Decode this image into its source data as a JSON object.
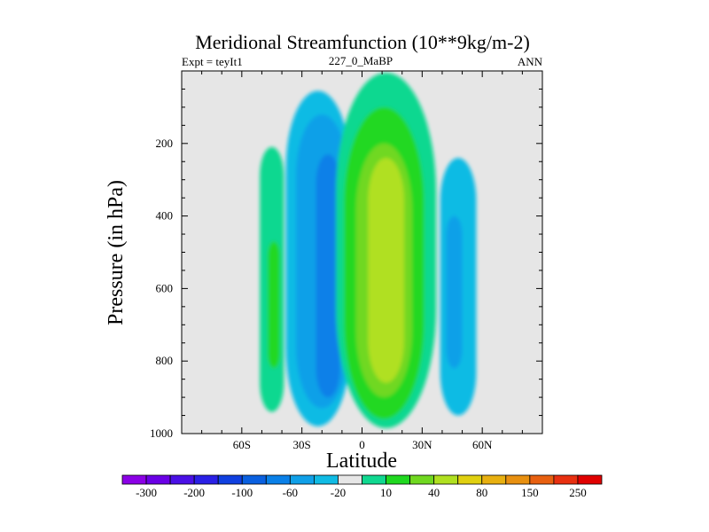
{
  "chart_data": {
    "type": "contour",
    "title": "Meridional Streamfunction (10**9kg/m-2)",
    "subtitle_left": "Expt = teyIt1",
    "subtitle_center": "227_0_MaBP",
    "subtitle_right": "ANN",
    "xlabel": "Latitude",
    "ylabel": "Pressure (in hPa)",
    "xlim": [
      -90,
      90
    ],
    "ylim": [
      0,
      1000
    ],
    "x_ticks": [
      {
        "value": -60,
        "label": "60S"
      },
      {
        "value": -30,
        "label": "30S"
      },
      {
        "value": 0,
        "label": "0"
      },
      {
        "value": 30,
        "label": "30N"
      },
      {
        "value": 60,
        "label": "60N"
      }
    ],
    "y_ticks": [
      {
        "value": 200,
        "label": "200"
      },
      {
        "value": 400,
        "label": "400"
      },
      {
        "value": 600,
        "label": "600"
      },
      {
        "value": 800,
        "label": "800"
      },
      {
        "value": 1000,
        "label": "1000"
      }
    ],
    "colorbar": {
      "colors": [
        "#8b00e6",
        "#6a00e6",
        "#4a10e6",
        "#2a20e6",
        "#1040e0",
        "#0a60e0",
        "#0a80e8",
        "#10a0e8",
        "#10bbe4",
        "#e6e6e6",
        "#10d890",
        "#20d820",
        "#70d820",
        "#b0e020",
        "#e0d010",
        "#e8b010",
        "#e89010",
        "#e86010",
        "#e83010",
        "#e00000"
      ],
      "labels": [
        {
          "after_box": 0,
          "text": "-300"
        },
        {
          "after_box": 2,
          "text": "-200"
        },
        {
          "after_box": 4,
          "text": "-100"
        },
        {
          "after_box": 6,
          "text": "-60"
        },
        {
          "after_box": 8,
          "text": "-20"
        },
        {
          "after_box": 10,
          "text": "10"
        },
        {
          "after_box": 12,
          "text": "40"
        },
        {
          "after_box": 14,
          "text": "80"
        },
        {
          "after_box": 16,
          "text": "150"
        },
        {
          "after_box": 18,
          "text": "250"
        }
      ]
    },
    "cells": [
      {
        "lat": -45,
        "pmin": 210,
        "pmax": 940,
        "half_width": 6,
        "color_index": 10,
        "name": "cell-sh-polar-outer"
      },
      {
        "lat": -44,
        "pmin": 470,
        "pmax": 820,
        "half_width": 3,
        "color_index": 11,
        "name": "cell-sh-polar-inner"
      },
      {
        "lat": -22,
        "pmin": 55,
        "pmax": 980,
        "half_width": 16,
        "color_index": 8,
        "name": "cell-sh-hadley-outer"
      },
      {
        "lat": -20,
        "pmin": 120,
        "pmax": 930,
        "half_width": 13,
        "color_index": 7,
        "name": "cell-sh-hadley-mid"
      },
      {
        "lat": -17,
        "pmin": 230,
        "pmax": 900,
        "half_width": 6,
        "color_index": 6,
        "name": "cell-sh-hadley-core"
      },
      {
        "lat": 12,
        "pmin": 5,
        "pmax": 985,
        "half_width": 25,
        "color_index": 10,
        "name": "cell-nh-hadley-outer"
      },
      {
        "lat": 11,
        "pmin": 100,
        "pmax": 960,
        "half_width": 20,
        "color_index": 11,
        "name": "cell-nh-hadley-mid"
      },
      {
        "lat": 11,
        "pmin": 200,
        "pmax": 900,
        "half_width": 14,
        "color_index": 12,
        "name": "cell-nh-hadley-inner"
      },
      {
        "lat": 12,
        "pmin": 240,
        "pmax": 860,
        "half_width": 9,
        "color_index": 13,
        "name": "cell-nh-hadley-core"
      },
      {
        "lat": 48,
        "pmin": 240,
        "pmax": 950,
        "half_width": 9,
        "color_index": 8,
        "name": "cell-nh-ferrel-outer"
      },
      {
        "lat": 46,
        "pmin": 400,
        "pmax": 820,
        "half_width": 4,
        "color_index": 7,
        "name": "cell-nh-ferrel-core"
      }
    ]
  }
}
